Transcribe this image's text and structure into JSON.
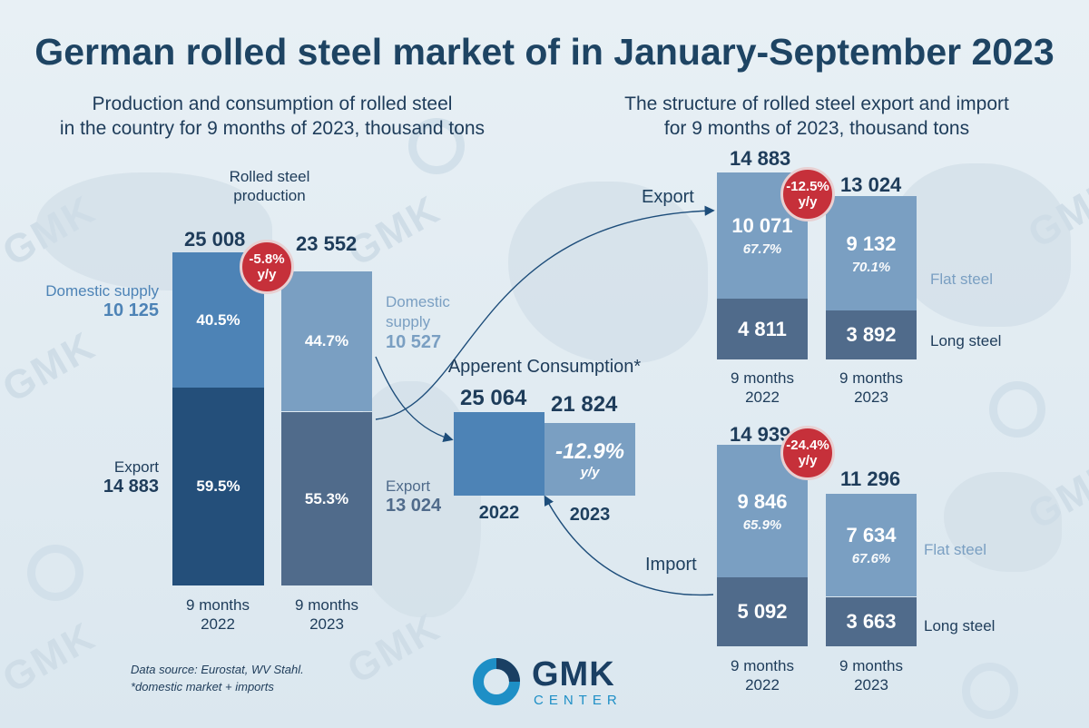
{
  "title": "German rolled steel market of  in January-September 2023",
  "left_subtitle": [
    "Production and consumption of rolled steel",
    "in the country for 9 months of 2023, thousand tons"
  ],
  "right_subtitle": [
    "The structure of rolled steel export and import",
    "for 9 months of 2023, thousand tons"
  ],
  "watermark": "GMK",
  "production": {
    "heading": [
      "Rolled steel",
      "production"
    ],
    "total_2022": "25 008",
    "total_2023": "23 552",
    "badge": [
      "-5.8%",
      "y/y"
    ],
    "domestic_2022_pct": "40.5%",
    "domestic_2023_pct": "44.7%",
    "export_2022_pct": "59.5%",
    "export_2023_pct": "55.3%",
    "domestic_label": "Domestic supply",
    "domestic_2022_value": "10 125",
    "domestic_2023_label": [
      "Domestic",
      "supply"
    ],
    "domestic_2023_value": "10 527",
    "export_label": "Export",
    "export_2022_value": "14 883",
    "export_2023_value": "13 024",
    "x_2022": [
      "9 months",
      "2022"
    ],
    "x_2023": [
      "9 months",
      "2023"
    ]
  },
  "consumption": {
    "heading": "Apperent Consumption*",
    "value_2022": "25 064",
    "value_2023": "21 824",
    "change": "-12.9%",
    "change_unit": "y/y",
    "x_2022": "2022",
    "x_2023": "2023"
  },
  "export": {
    "label": "Export",
    "total_2022": "14 883",
    "total_2023": "13 024",
    "badge": [
      "-12.5%",
      "y/y"
    ],
    "flat_2022": "10 071",
    "flat_2022_share": "67.7%",
    "flat_2023": "9 132",
    "flat_2023_share": "70.1%",
    "long_2022": "4 811",
    "long_2023": "3 892",
    "flat_label": "Flat steel",
    "long_label": "Long steel",
    "x_2022": [
      "9 months",
      "2022"
    ],
    "x_2023": [
      "9 months",
      "2023"
    ]
  },
  "import": {
    "label": "Import",
    "total_2022": "14 939",
    "total_2023": "11 296",
    "badge": [
      "-24.4%",
      "y/y"
    ],
    "flat_2022": "9 846",
    "flat_2022_share": "65.9%",
    "flat_2023": "7 634",
    "flat_2023_share": "67.6%",
    "long_2022": "5 092",
    "long_2023": "3 663",
    "flat_label": "Flat steel",
    "long_label": "Long steel",
    "x_2022": [
      "9 months",
      "2022"
    ],
    "x_2023": [
      "9 months",
      "2023"
    ]
  },
  "source": [
    "Data source: Eurostat, WV Stahl.",
    "*domestic market + imports"
  ],
  "logo": {
    "name": "GMK",
    "sub": "CENTER"
  },
  "colors": {
    "dark": "#244f7a",
    "mid": "#4d83b6",
    "light": "#7a9fc2",
    "slate": "#506b8b",
    "badge": "#c6303a"
  },
  "chart_data": [
    {
      "type": "bar",
      "title": "Rolled steel production",
      "categories": [
        "9 months 2022",
        "9 months 2023"
      ],
      "series": [
        {
          "name": "Domestic supply",
          "values": [
            10125,
            10527
          ]
        },
        {
          "name": "Export",
          "values": [
            14883,
            13024
          ]
        }
      ],
      "totals": [
        25008,
        23552
      ]
    },
    {
      "type": "bar",
      "title": "Apperent Consumption*",
      "categories": [
        "2022",
        "2023"
      ],
      "values": [
        25064,
        21824
      ]
    },
    {
      "type": "bar",
      "title": "Export",
      "categories": [
        "9 months 2022",
        "9 months 2023"
      ],
      "series": [
        {
          "name": "Flat steel",
          "values": [
            10071,
            9132
          ]
        },
        {
          "name": "Long steel",
          "values": [
            4811,
            3892
          ]
        }
      ],
      "totals": [
        14883,
        13024
      ]
    },
    {
      "type": "bar",
      "title": "Import",
      "categories": [
        "9 months 2022",
        "9 months 2023"
      ],
      "series": [
        {
          "name": "Flat steel",
          "values": [
            9846,
            7634
          ]
        },
        {
          "name": "Long steel",
          "values": [
            5092,
            3663
          ]
        }
      ],
      "totals": [
        14939,
        11296
      ]
    }
  ]
}
